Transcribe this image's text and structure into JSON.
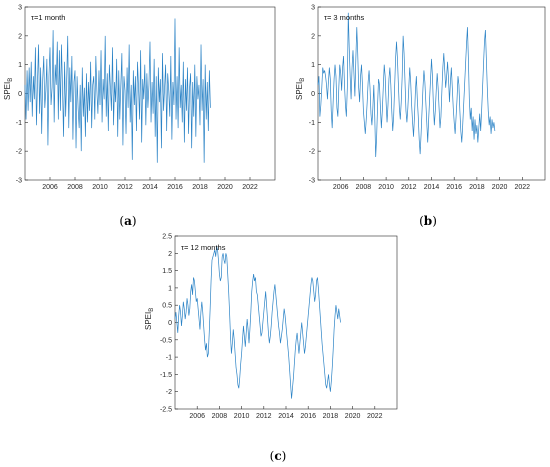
{
  "chart_data": [
    {
      "type": "line",
      "caption_letter": "a",
      "tau_label": "τ=1 month",
      "ylabel": "SPEI",
      "ylabel_sub": "B",
      "xlim": [
        2004.0,
        2024.0
      ],
      "ylim": [
        -3,
        3
      ],
      "yticks": [
        -3,
        -2,
        -1,
        0,
        1,
        2,
        3
      ],
      "xticks": [
        "2006",
        "2008",
        "2010",
        "2012",
        "2014",
        "2016",
        "2018",
        "2020",
        "2022"
      ],
      "color": "#2b83c6",
      "x_start": 2004.0,
      "x_step": 0.08333,
      "values": [
        0.3,
        -0.9,
        0.8,
        -0.6,
        0.9,
        -0.3,
        1.1,
        -0.8,
        0.6,
        -0.2,
        1.6,
        -1.1,
        0.4,
        1.7,
        -0.7,
        0.9,
        -1.4,
        0.5,
        1.3,
        -0.5,
        0.1,
        1.2,
        -1.8,
        0.6,
        1.6,
        -0.4,
        0.2,
        2.2,
        -1.0,
        1.0,
        0.3,
        1.8,
        -0.9,
        1.5,
        -0.6,
        1.7,
        0.2,
        -1.5,
        1.1,
        -0.8,
        0.5,
        2.0,
        -1.2,
        0.9,
        -0.3,
        1.3,
        -1.6,
        0.4,
        0.8,
        -1.9,
        0.6,
        -0.5,
        -1.2,
        0.3,
        -2.0,
        0.9,
        -0.8,
        0.2,
        -1.5,
        0.7,
        -1.0,
        0.4,
        -0.6,
        1.1,
        -1.2,
        0.3,
        0.6,
        -0.9,
        1.3,
        0.1,
        -0.7,
        0.8,
        -0.4,
        1.5,
        -1.0,
        0.5,
        -0.2,
        2.0,
        -0.8,
        0.7,
        -1.3,
        1.0,
        0.2,
        -0.6,
        1.6,
        -1.1,
        0.4,
        -0.3,
        1.2,
        -1.5,
        0.8,
        -0.9,
        0.3,
        1.4,
        -1.8,
        0.6,
        0.1,
        -1.4,
        0.9,
        -0.5,
        1.7,
        -1.0,
        0.3,
        -2.3,
        0.8,
        -0.4,
        0.6,
        -1.3,
        1.1,
        0.2,
        -0.9,
        1.5,
        -1.7,
        0.5,
        -0.2,
        1.0,
        -1.1,
        0.7,
        -0.5,
        0.3,
        1.8,
        -1.0,
        0.4,
        -0.7,
        1.2,
        -1.5,
        0.6,
        -2.4,
        0.9,
        -0.3,
        0.5,
        -1.9,
        1.4,
        -0.6,
        0.2,
        1.0,
        -1.3,
        0.7,
        0.1,
        -0.8,
        1.3,
        -1.6,
        0.4,
        -0.4,
        2.6,
        -0.9,
        0.6,
        -1.2,
        1.6,
        -0.5,
        0.3,
        -1.0,
        1.1,
        -1.7,
        0.5,
        -0.6,
        0.9,
        -1.4,
        0.2,
        0.7,
        -1.9,
        0.4,
        -0.8,
        1.0,
        -1.5,
        0.6,
        -0.2,
        0.3,
        -1.1,
        1.7,
        -0.6,
        0.5,
        -2.4,
        1.0,
        -0.9,
        0.4,
        -1.3,
        0.8,
        -0.5
      ]
    },
    {
      "type": "line",
      "caption_letter": "b",
      "tau_label": "τ= 3 months",
      "ylabel": "SPEI",
      "ylabel_sub": "B",
      "xlim": [
        2004.0,
        2024.0
      ],
      "ylim": [
        -3,
        3
      ],
      "yticks": [
        -3,
        -2,
        -1,
        0,
        1,
        2,
        3
      ],
      "xticks": [
        "2006",
        "2008",
        "2010",
        "2012",
        "2014",
        "2016",
        "2018",
        "2020",
        "2022"
      ],
      "color": "#2b83c6",
      "x_start": 2004.0,
      "x_step": 0.08333,
      "values": [
        0.3,
        0.6,
        -0.8,
        -0.4,
        0.2,
        0.9,
        0.7,
        0.8,
        0.6,
        0.3,
        -0.2,
        0.4,
        0.9,
        0.5,
        -0.6,
        -1.2,
        -0.3,
        0.5,
        1.0,
        0.6,
        -0.5,
        -0.8,
        0.2,
        1.0,
        0.7,
        0.1,
        0.9,
        1.3,
        0.3,
        -0.4,
        -0.8,
        0.2,
        2.8,
        1.6,
        0.6,
        -0.2,
        0.9,
        1.5,
        0.7,
        -0.1,
        1.2,
        2.3,
        1.4,
        0.2,
        -0.3,
        0.6,
        1.0,
        0.3,
        -0.6,
        -1.0,
        -1.4,
        -0.9,
        -0.3,
        0.4,
        0.8,
        0.2,
        -0.7,
        -1.1,
        -0.5,
        0.3,
        -0.8,
        -2.2,
        -1.5,
        -0.4,
        0.5,
        0.3,
        -0.5,
        -1.2,
        -0.6,
        0.2,
        1.0,
        0.6,
        -0.3,
        -1.0,
        -0.4,
        0.5,
        0.9,
        0.3,
        -0.6,
        -1.3,
        -0.8,
        0.2,
        1.2,
        1.8,
        1.2,
        0.3,
        -0.5,
        -0.9,
        -0.3,
        0.6,
        2.0,
        1.4,
        0.4,
        -0.6,
        -1.0,
        -0.5,
        0.2,
        0.9,
        0.4,
        -0.4,
        -1.0,
        -1.5,
        -0.8,
        0.1,
        0.6,
        -0.2,
        -0.8,
        -1.6,
        -2.1,
        -1.4,
        -0.6,
        0.2,
        0.8,
        0.4,
        -0.3,
        -1.0,
        -1.7,
        -0.9,
        -0.2,
        0.5,
        1.2,
        0.6,
        -0.4,
        -1.1,
        -0.6,
        0.1,
        0.7,
        0.2,
        -0.5,
        -1.2,
        -0.8,
        0.1,
        0.9,
        1.4,
        0.8,
        0.2,
        0.6,
        1.1,
        0.5,
        -0.3,
        0.4,
        0.9,
        0.2,
        -0.5,
        -1.0,
        -1.4,
        -0.8,
        -0.2,
        0.6,
        0.3,
        -0.6,
        -1.3,
        -1.7,
        -1.1,
        -0.4,
        0.3,
        1.0,
        1.7,
        2.3,
        1.2,
        -0.2,
        -0.9,
        -0.5,
        -1.3,
        -0.8,
        -1.6,
        -0.9,
        -1.4,
        -1.1,
        -1.7,
        -1.2,
        -0.7,
        -1.3,
        -0.6,
        0.2,
        1.0,
        1.8,
        2.2,
        1.2,
        0.2,
        -0.6,
        -1.1,
        -0.8,
        -1.4,
        -0.9,
        -1.2,
        -1.0,
        -1.3
      ]
    },
    {
      "type": "line",
      "caption_letter": "c",
      "tau_label": "τ= 12 months",
      "ylabel": "SPEI",
      "ylabel_sub": "B",
      "xlim": [
        2004.0,
        2024.0
      ],
      "ylim": [
        -2.5,
        2.5
      ],
      "yticks": [
        -2.5,
        -2,
        -1.5,
        -1,
        -0.5,
        0,
        0.5,
        1,
        1.5,
        2,
        2.5
      ],
      "ytick_labels": [
        "-2.5",
        "-2",
        "-1.5",
        "-1",
        "-0.5",
        "0",
        "0.5",
        "1",
        "1.5",
        "2",
        "2.5"
      ],
      "xticks": [
        "2006",
        "2008",
        "2010",
        "2012",
        "2014",
        "2016",
        "2018",
        "2020",
        "2022"
      ],
      "color": "#2b83c6",
      "x_start": 2004.0,
      "x_step": 0.08333,
      "values": [
        0.1,
        0.3,
        0.0,
        -0.3,
        0.2,
        0.5,
        0.3,
        -0.1,
        0.2,
        0.6,
        0.4,
        0.1,
        0.3,
        0.7,
        0.5,
        0.2,
        0.4,
        0.9,
        1.1,
        0.8,
        1.3,
        1.2,
        0.9,
        0.6,
        0.7,
        0.4,
        0.1,
        -0.2,
        0.3,
        0.6,
        0.3,
        -0.1,
        -0.5,
        -0.8,
        -0.6,
        -1.0,
        -0.9,
        -0.3,
        0.4,
        1.2,
        1.8,
        1.9,
        2.0,
        2.1,
        1.9,
        2.2,
        2.1,
        1.8,
        1.4,
        1.2,
        1.3,
        1.9,
        2.0,
        1.8,
        1.7,
        2.0,
        1.9,
        1.4,
        0.9,
        0.3,
        -0.4,
        -0.9,
        -0.6,
        -0.2,
        -0.5,
        -0.9,
        -1.3,
        -1.5,
        -1.8,
        -1.9,
        -1.6,
        -1.2,
        -0.9,
        -0.5,
        -0.1,
        -0.4,
        -0.7,
        -0.3,
        0.1,
        -0.2,
        -0.6,
        -0.2,
        0.3,
        0.9,
        1.2,
        1.4,
        1.2,
        1.3,
        0.9,
        0.8,
        0.5,
        0.2,
        -0.1,
        -0.4,
        -0.3,
        0.0,
        0.3,
        0.6,
        0.9,
        0.5,
        0.1,
        -0.3,
        -0.6,
        -0.4,
        -0.1,
        0.3,
        0.6,
        0.9,
        1.1,
        0.8,
        0.5,
        0.2,
        -0.1,
        -0.3,
        -0.6,
        -0.4,
        -0.2,
        0.1,
        0.4,
        0.2,
        -0.1,
        -0.4,
        -0.7,
        -1.0,
        -1.4,
        -1.8,
        -2.2,
        -1.9,
        -1.6,
        -1.2,
        -0.8,
        -0.5,
        -0.3,
        -0.6,
        -0.9,
        -0.6,
        -0.3,
        0.0,
        -0.3,
        -0.6,
        -0.9,
        -0.7,
        -0.4,
        -0.1,
        0.2,
        0.5,
        0.8,
        1.1,
        1.3,
        1.2,
        0.9,
        0.6,
        0.8,
        1.2,
        1.3,
        1.0,
        0.6,
        0.2,
        -0.2,
        -0.6,
        -0.9,
        -1.2,
        -1.5,
        -1.8,
        -1.9,
        -1.7,
        -1.5,
        -1.8,
        -2.0,
        -1.7,
        -1.3,
        -0.8,
        -0.2,
        0.2,
        0.5,
        0.3,
        0.1,
        0.4,
        0.2,
        0.0
      ]
    }
  ]
}
